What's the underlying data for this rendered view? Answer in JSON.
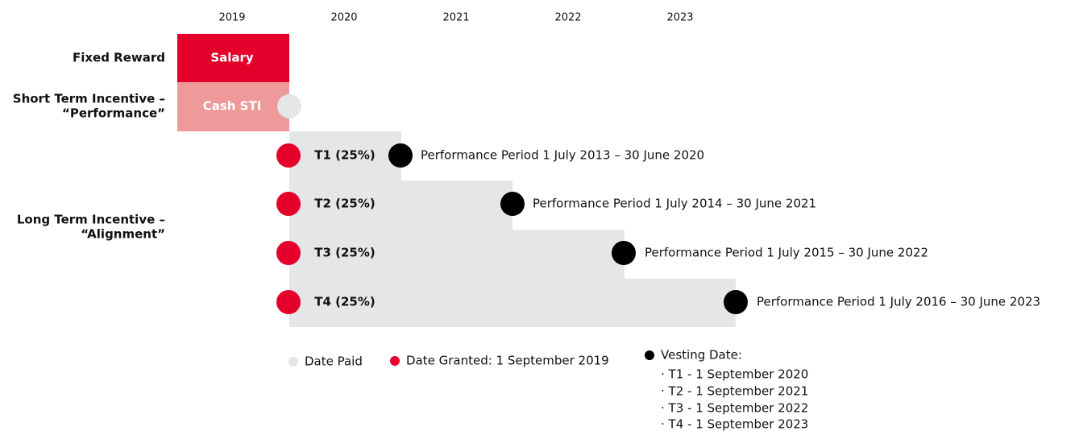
{
  "years": [
    "2019",
    "2020",
    "2021",
    "2022",
    "2023"
  ],
  "rows": {
    "fixed": {
      "label": "Fixed Reward",
      "box": "Salary"
    },
    "sti": {
      "label": [
        "Short Term Incentive –",
        "“Performance”"
      ],
      "box": "Cash STI"
    },
    "lti": {
      "label": [
        "Long Term Incentive –",
        "“Alignment”"
      ],
      "tranches": [
        {
          "name": "T1 (25%)",
          "period": "Performance Period 1 July 2013 – 30 June 2020"
        },
        {
          "name": "T2 (25%)",
          "period": "Performance Period 1 July 2014 – 30 June 2021"
        },
        {
          "name": "T3 (25%)",
          "period": "Performance Period 1 July 2015 – 30 June 2022"
        },
        {
          "name": "T4 (25%)",
          "period": "Performance Period 1 July 2016 – 30 June 2023"
        }
      ]
    }
  },
  "legend": {
    "paid": "Date Paid",
    "granted": "Date Granted: 1 September 2019",
    "vesting": "Vesting Date:",
    "vesting_dates": [
      "· T1 - 1 September 2020",
      "· T2 - 1 September 2021",
      "· T3 - 1 September 2022",
      "· T4 - 1 September 2023"
    ]
  }
}
